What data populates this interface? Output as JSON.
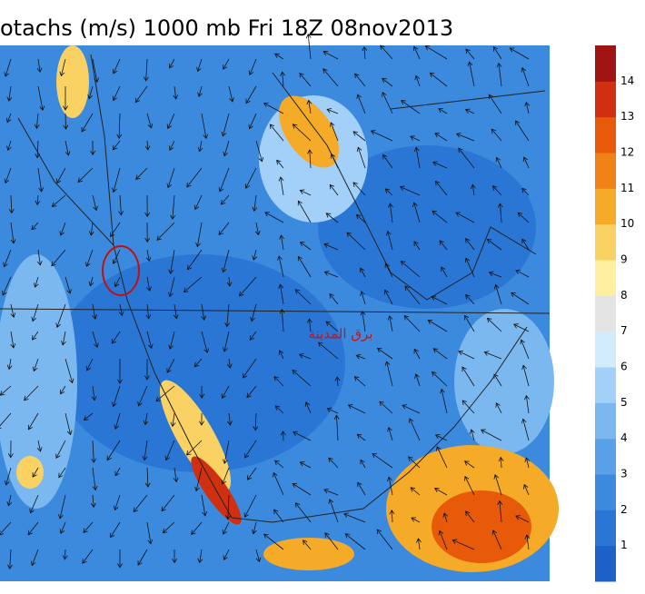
{
  "header": {
    "title": "otachs (m/s) 1000 mb Fri 18Z 08nov2013"
  },
  "map": {
    "annotation": "برق المدينة"
  },
  "colorbar": {
    "labels": [
      "1",
      "2",
      "3",
      "4",
      "5",
      "6",
      "7",
      "8",
      "9",
      "10",
      "11",
      "12",
      "13",
      "14"
    ],
    "colors": [
      "#1c62c6",
      "#2a76d4",
      "#3c8ade",
      "#5aa0e8",
      "#7cb8f0",
      "#a2d0f8",
      "#d2ecfc",
      "#e4e4e4",
      "#fff0a0",
      "#fad264",
      "#f5aa28",
      "#f08218",
      "#e65a0a",
      "#d03010",
      "#a01414"
    ]
  }
}
